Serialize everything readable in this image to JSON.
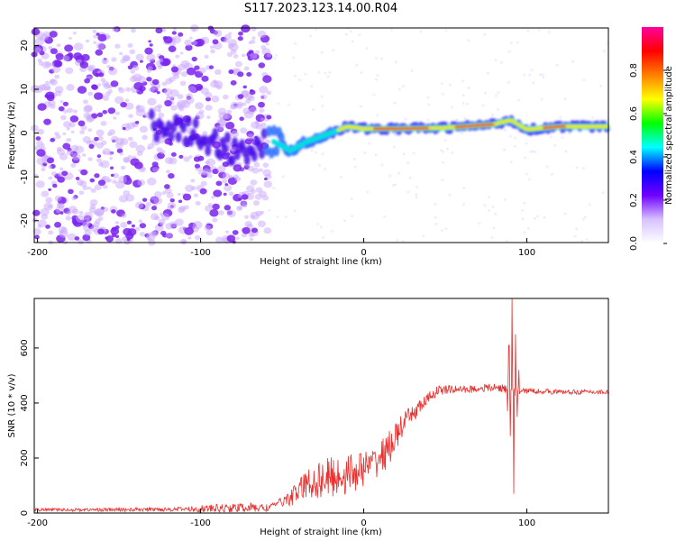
{
  "title": "S117.2023.123.14.00.R04",
  "chart_data": [
    {
      "type": "heatmap",
      "xlabel": "Height of straight line (km)",
      "ylabel": "Frequency (Hz)",
      "xlim": [
        -202,
        150
      ],
      "ylim": [
        -25,
        24
      ],
      "xticks": [
        -200,
        -100,
        0,
        100
      ],
      "yticks": [
        -20,
        -10,
        0,
        10,
        20
      ],
      "colorbar": {
        "label": "Normalized spectral amplitude",
        "range": [
          0,
          1
        ],
        "ticks": [
          "0.0",
          "0.2",
          "0.4",
          "0.6",
          "0.8"
        ],
        "colors": [
          "#ffffff",
          "#d7c2ff",
          "#7000ff",
          "#0000ff",
          "#00ffff",
          "#00ff00",
          "#ffff00",
          "#ff8000",
          "#ff0000",
          "#ff00a0"
        ]
      },
      "ridge": [
        {
          "x": -120,
          "y": 2
        },
        {
          "x": -100,
          "y": -1
        },
        {
          "x": -80,
          "y": -4
        },
        {
          "x": -55,
          "y": -2
        },
        {
          "x": -45,
          "y": -4
        },
        {
          "x": -35,
          "y": -2
        },
        {
          "x": -20,
          "y": 0
        },
        {
          "x": -10,
          "y": 1.5
        },
        {
          "x": 0,
          "y": 1
        },
        {
          "x": 20,
          "y": 1
        },
        {
          "x": 50,
          "y": 1.2
        },
        {
          "x": 80,
          "y": 2
        },
        {
          "x": 90,
          "y": 3
        },
        {
          "x": 100,
          "y": 0.8
        },
        {
          "x": 120,
          "y": 1.5
        },
        {
          "x": 150,
          "y": 1.5
        }
      ]
    },
    {
      "type": "line",
      "xlabel": "Height of straight line (km)",
      "ylabel": "SNR (10 * v/v)",
      "xlim": [
        -202,
        150
      ],
      "ylim": [
        0,
        780
      ],
      "xticks": [
        -200,
        -100,
        0,
        100
      ],
      "yticks": [
        0,
        200,
        400,
        600
      ],
      "color": "#e8302e",
      "trend": {
        "x": [
          -202,
          -150,
          -100,
          -70,
          -60,
          -45,
          -35,
          -25,
          -15,
          -5,
          5,
          15,
          25,
          35,
          45,
          55,
          65,
          75,
          85,
          92,
          100,
          120,
          150
        ],
        "y": [
          12,
          12,
          15,
          20,
          18,
          55,
          105,
          125,
          135,
          150,
          175,
          230,
          330,
          390,
          445,
          450,
          450,
          455,
          455,
          440,
          445,
          440,
          440
        ]
      },
      "noise": {
        "x": [
          -202,
          -110,
          -100,
          -60,
          -55,
          -45,
          -35,
          -25,
          -15,
          -5,
          5,
          15,
          25,
          35,
          45,
          55,
          65,
          75,
          82,
          88,
          96,
          100,
          150
        ],
        "amp": [
          5,
          8,
          14,
          18,
          6,
          30,
          55,
          75,
          80,
          70,
          60,
          65,
          40,
          25,
          20,
          14,
          14,
          14,
          16,
          14,
          16,
          10,
          8
        ]
      },
      "spike": {
        "x": [
          88,
          89,
          90,
          91,
          92,
          93,
          94,
          95
        ],
        "y": [
          370,
          610,
          280,
          780,
          70,
          650,
          350,
          520
        ]
      }
    }
  ]
}
